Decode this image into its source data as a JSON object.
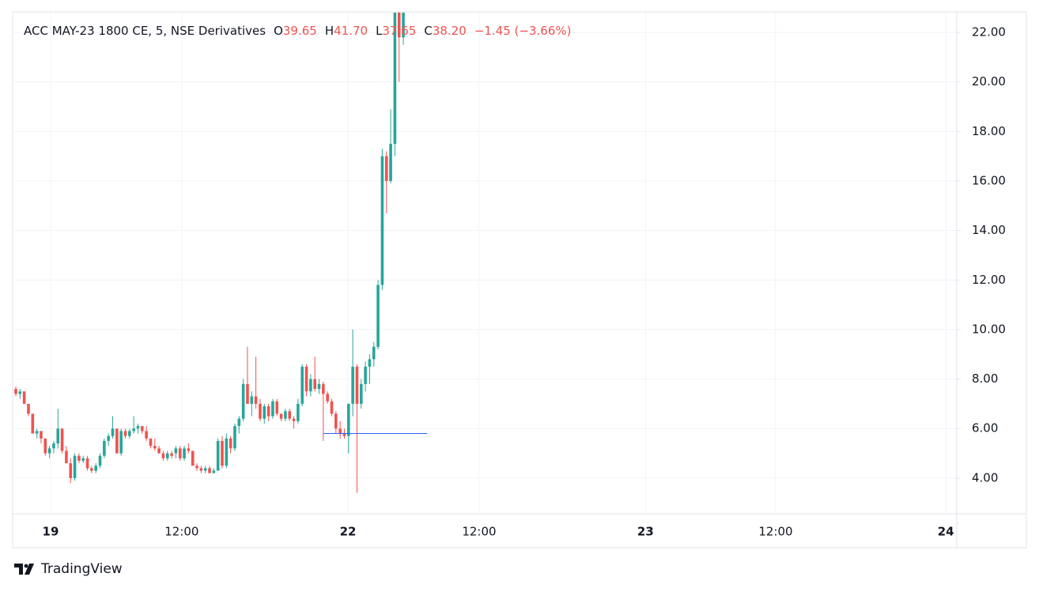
{
  "chart_data": {
    "type": "candlestick",
    "legend_text": {
      "symbol": "ACC MAY-23 1800 CE, 5, NSE Derivatives",
      "o_label": "O",
      "o": "39.65",
      "h_label": "H",
      "h": "41.70",
      "l_label": "L",
      "l": "37.65",
      "c_label": "C",
      "c": "38.20",
      "change": "−1.45 (−3.66%)"
    },
    "up_color": "#26a69a",
    "down_color": "#ef5350",
    "x": [
      1,
      2,
      3,
      4,
      5,
      6,
      7,
      8,
      9,
      10,
      11,
      12,
      13,
      14,
      15,
      16,
      17,
      18,
      19,
      20,
      21,
      22,
      23,
      24,
      25,
      26,
      27,
      28,
      29,
      30,
      31,
      32,
      33,
      34,
      35,
      36,
      37,
      38,
      39,
      40,
      41,
      42,
      43,
      44,
      45,
      46,
      47,
      48,
      49,
      50,
      51,
      52,
      53,
      54,
      55,
      56,
      57,
      58,
      59,
      60,
      61,
      62,
      63,
      64,
      65,
      66,
      67,
      68,
      69,
      70,
      71,
      72,
      73,
      74,
      75,
      76,
      77,
      78,
      79,
      80,
      81,
      82,
      83,
      84,
      85,
      86,
      87,
      88,
      89,
      90,
      91,
      92,
      93
    ],
    "open": [
      7.6,
      7.4,
      7.5,
      7.0,
      6.6,
      5.8,
      5.9,
      5.6,
      5.0,
      5.2,
      5.4,
      6.0,
      5.1,
      4.6,
      4.0,
      4.9,
      4.7,
      4.8,
      4.4,
      4.3,
      4.5,
      4.9,
      5.5,
      5.7,
      6.0,
      5.0,
      5.9,
      5.7,
      5.9,
      6.0,
      6.1,
      5.9,
      5.6,
      5.3,
      5.2,
      5.0,
      4.8,
      5.0,
      5.0,
      5.2,
      4.8,
      5.2,
      5.1,
      4.5,
      4.4,
      4.3,
      4.4,
      4.2,
      4.3,
      5.5,
      4.5,
      5.6,
      5.2,
      6.1,
      6.4,
      7.8,
      7.0,
      7.3,
      7.0,
      6.4,
      6.9,
      6.5,
      7.1,
      6.6,
      6.4,
      6.7,
      6.4,
      6.3,
      7.0,
      8.5,
      7.5,
      8.0,
      7.6,
      7.8,
      7.4,
      7.1,
      6.6,
      6.0,
      5.8,
      5.7,
      7.0,
      8.5,
      7.0,
      7.8,
      8.5,
      8.8,
      9.3,
      11.8,
      17.0,
      16.0,
      17.5,
      22.8,
      21.8
    ],
    "high": [
      7.7,
      7.6,
      7.5,
      7.0,
      6.6,
      6.0,
      5.9,
      5.6,
      5.3,
      5.5,
      6.8,
      6.0,
      5.3,
      4.8,
      5.0,
      5.0,
      4.9,
      4.9,
      4.5,
      4.6,
      5.0,
      5.6,
      5.8,
      6.5,
      6.0,
      6.0,
      6.0,
      6.0,
      6.5,
      6.2,
      6.1,
      6.1,
      5.6,
      5.6,
      5.3,
      5.1,
      5.1,
      5.1,
      5.3,
      5.3,
      5.3,
      5.4,
      5.1,
      4.6,
      4.5,
      4.5,
      4.5,
      4.4,
      5.6,
      5.7,
      5.8,
      5.7,
      6.2,
      6.5,
      8.0,
      9.3,
      7.5,
      8.9,
      7.2,
      7.0,
      7.0,
      7.2,
      7.2,
      6.6,
      6.8,
      6.8,
      6.5,
      7.2,
      8.6,
      8.6,
      8.2,
      8.9,
      8.0,
      7.9,
      7.5,
      7.2,
      6.7,
      6.3,
      6.0,
      7.0,
      10.0,
      8.6,
      8.0,
      8.7,
      9.0,
      9.5,
      12.0,
      17.3,
      17.2,
      18.9,
      22.8,
      22.8,
      22.8
    ],
    "low": [
      7.3,
      7.2,
      7.0,
      6.5,
      5.8,
      5.6,
      5.4,
      4.9,
      4.8,
      5.0,
      5.2,
      5.0,
      4.6,
      3.8,
      3.9,
      4.6,
      4.6,
      4.3,
      4.2,
      4.2,
      4.4,
      4.8,
      5.3,
      5.6,
      5.0,
      4.9,
      5.6,
      5.6,
      5.8,
      5.8,
      5.8,
      5.5,
      5.2,
      5.1,
      5.0,
      4.7,
      4.7,
      4.8,
      4.8,
      4.7,
      4.7,
      5.0,
      4.5,
      4.3,
      4.2,
      4.2,
      4.2,
      4.2,
      4.3,
      4.4,
      4.4,
      5.0,
      5.1,
      5.8,
      6.3,
      7.0,
      6.5,
      6.8,
      6.3,
      6.2,
      6.3,
      6.4,
      6.5,
      6.3,
      6.3,
      6.3,
      6.0,
      6.2,
      6.9,
      7.3,
      7.3,
      7.5,
      7.4,
      5.5,
      7.0,
      6.5,
      5.8,
      5.6,
      5.6,
      5.0,
      6.5,
      3.4,
      6.8,
      7.5,
      7.8,
      8.5,
      9.2,
      11.6,
      14.7,
      15.9,
      17.0,
      20.0,
      21.5
    ],
    "close": [
      7.4,
      7.5,
      7.0,
      6.6,
      5.8,
      5.9,
      5.6,
      5.0,
      5.2,
      5.4,
      6.0,
      5.1,
      4.6,
      4.0,
      4.9,
      4.7,
      4.8,
      4.4,
      4.3,
      4.5,
      4.9,
      5.5,
      5.7,
      6.0,
      5.0,
      5.9,
      5.7,
      5.9,
      6.0,
      6.1,
      5.9,
      5.6,
      5.3,
      5.2,
      5.0,
      4.8,
      5.0,
      4.9,
      5.2,
      4.8,
      5.2,
      5.1,
      4.5,
      4.4,
      4.3,
      4.4,
      4.2,
      4.3,
      5.5,
      4.5,
      5.6,
      5.2,
      6.1,
      6.4,
      7.8,
      7.0,
      7.3,
      7.0,
      6.4,
      6.9,
      6.5,
      7.1,
      6.6,
      6.4,
      6.7,
      6.4,
      6.3,
      7.0,
      8.5,
      7.5,
      8.0,
      7.6,
      7.8,
      7.4,
      7.1,
      6.6,
      6.0,
      5.8,
      5.7,
      7.0,
      8.5,
      7.0,
      7.8,
      8.5,
      8.8,
      9.3,
      11.8,
      17.0,
      16.0,
      17.5,
      22.8,
      21.8,
      22.8
    ],
    "price_line": {
      "y": 5.8,
      "x": [
        74,
        98.7
      ],
      "color": "#2962ff"
    },
    "xlim": [
      0.25,
      224.4
    ],
    "ylim": [
      2.56,
      22.83
    ],
    "xticks": [
      {
        "value": 9.26,
        "label": "19"
      },
      {
        "value": 40.4,
        "label": "12:00"
      },
      {
        "value": 79.86,
        "label": "22"
      },
      {
        "value": 111.0,
        "label": "12:00"
      },
      {
        "value": 150.5,
        "label": "23"
      },
      {
        "value": 181.4,
        "label": "12:00"
      },
      {
        "value": 221.8,
        "label": "24"
      }
    ],
    "yticks": [
      {
        "value": 4,
        "label": "4.00"
      },
      {
        "value": 6,
        "label": "6.00"
      },
      {
        "value": 8,
        "label": "8.00"
      },
      {
        "value": 10,
        "label": "10.00"
      },
      {
        "value": 12,
        "label": "12.00"
      },
      {
        "value": 14,
        "label": "14.00"
      },
      {
        "value": 16,
        "label": "16.00"
      },
      {
        "value": 18,
        "label": "18.00"
      },
      {
        "value": 20,
        "label": "20.00"
      },
      {
        "value": 22,
        "label": "22.00"
      }
    ],
    "grid": true
  },
  "footer": {
    "brand": "TradingView"
  }
}
